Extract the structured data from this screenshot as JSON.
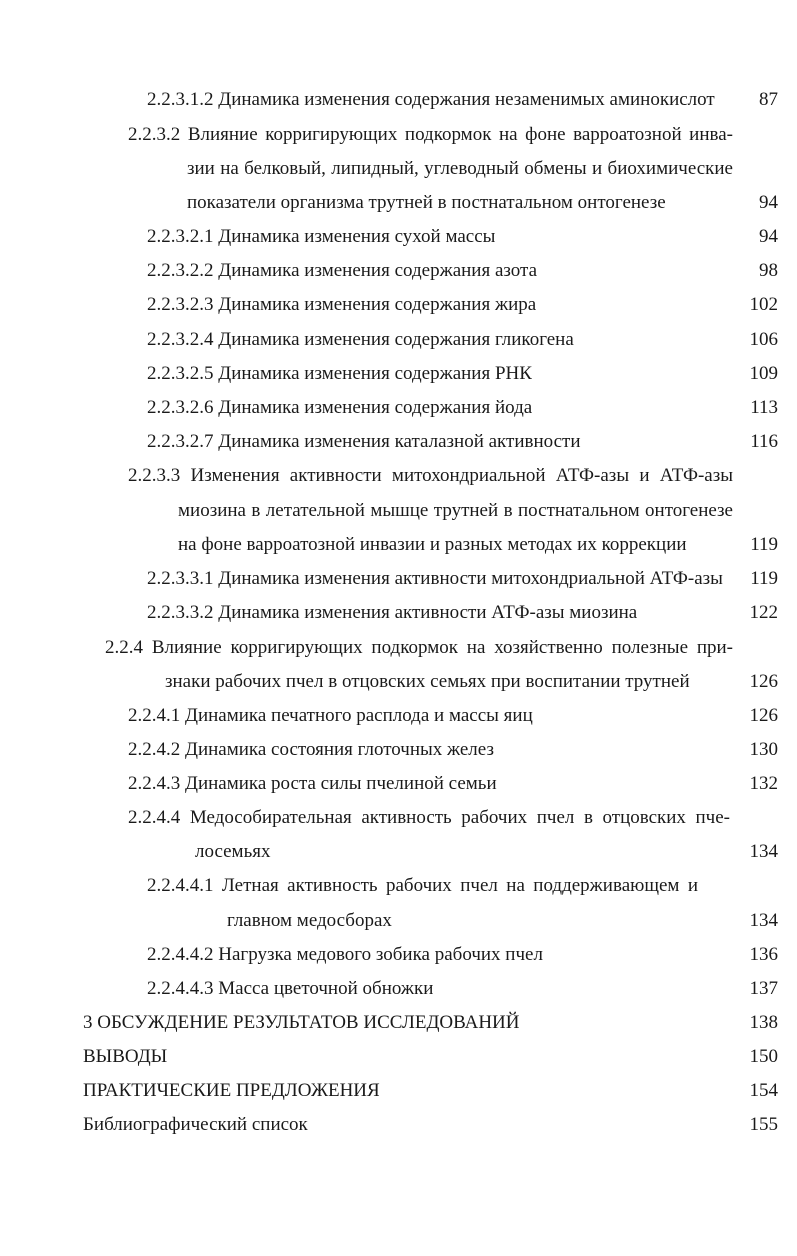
{
  "toc": [
    {
      "text": "2.2.3.1.2 Динамика изменения содержания незаменимых аминокислот",
      "page": "87"
    },
    {
      "text": "2.2.3.2 Влияние корригирующих подкормок на фоне варроатозной инва-"
    },
    {
      "text": "зии на белковый, липидный, углеводный обмены и биохимические"
    },
    {
      "text": "показатели организма трутней в постнатальном онтогенезе",
      "page": "94"
    },
    {
      "text": "2.2.3.2.1 Динамика изменения сухой массы",
      "page": "94"
    },
    {
      "text": "2.2.3.2.2 Динамика изменения содержания азота",
      "page": "98"
    },
    {
      "text": "2.2.3.2.3 Динамика изменения содержания жира",
      "page": "102"
    },
    {
      "text": "2.2.3.2.4 Динамика изменения содержания гликогена",
      "page": "106"
    },
    {
      "text": "2.2.3.2.5 Динамика изменения содержания РНК",
      "page": "109"
    },
    {
      "text": "2.2.3.2.6 Динамика изменения содержания йода",
      "page": "113"
    },
    {
      "text": "2.2.3.2.7 Динамика изменения каталазной активности",
      "page": "116"
    },
    {
      "text": "2.2.3.3 Изменения активности митохондриальной АТФ-азы и АТФ-азы"
    },
    {
      "text": "миозина в летательной мышце трутней в постнатальном онтогенезе"
    },
    {
      "text": "на фоне варроатозной инвазии и разных методах их коррекции",
      "page": "119"
    },
    {
      "text": "2.2.3.3.1 Динамика изменения активности митохондриальной АТФ-азы",
      "page": "119"
    },
    {
      "text": "2.2.3.3.2 Динамика изменения активности АТФ-азы миозина",
      "page": "122"
    },
    {
      "text": "2.2.4 Влияние корригирующих подкормок на хозяйственно полезные при-"
    },
    {
      "text": "знаки рабочих пчел в отцовских семьях при воспитании трутней",
      "page": "126"
    },
    {
      "text": "2.2.4.1  Динамика печатного расплода и массы яиц",
      "page": "126"
    },
    {
      "text": "2.2.4.2  Динамика состояния глоточных желез",
      "page": "130"
    },
    {
      "text": "2.2.4.3  Динамика роста силы пчелиной семьи",
      "page": "132"
    },
    {
      "text": "2.2.4.4  Медособирательная активность рабочих пчел в отцовских пче-"
    },
    {
      "text": "лосемьях",
      "page": "134"
    },
    {
      "text": "2.2.4.4.1 Летная активность рабочих пчел на поддерживающем и"
    },
    {
      "text": "главном медосборах",
      "page": "134"
    },
    {
      "text": "2.2.4.4.2 Нагрузка медового зобика рабочих пчел",
      "page": "136"
    },
    {
      "text": "2.2.4.4.3 Масса цветочной обножки",
      "page": "137"
    },
    {
      "text": "3 ОБСУЖДЕНИЕ РЕЗУЛЬТАТОВ ИССЛЕДОВАНИЙ",
      "page": "138"
    },
    {
      "text": "ВЫВОДЫ",
      "page": "150"
    },
    {
      "text": "ПРАКТИЧЕСКИЕ ПРЕДЛОЖЕНИЯ",
      "page": "154"
    },
    {
      "text": "Библиографический список",
      "page": "155"
    }
  ]
}
